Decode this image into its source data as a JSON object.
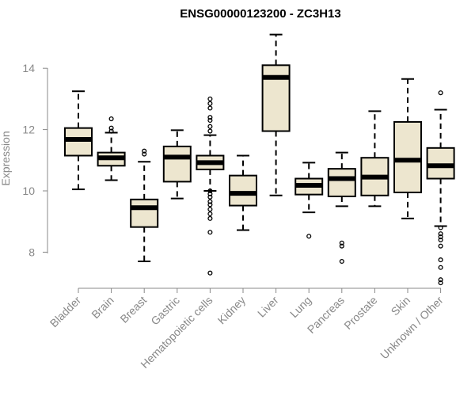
{
  "chart_data": {
    "type": "boxplot",
    "title": "ENSG00000123200 - ZC3H13",
    "xlabel": "",
    "ylabel": "Expression",
    "ylim": [
      6.5,
      15.3
    ],
    "yticks": [
      8,
      10,
      12,
      14
    ],
    "grid": false,
    "box_color": "#ede6cf",
    "categories": [
      "Bladder",
      "Brain",
      "Breast",
      "Gastric",
      "Hematopoietic cells",
      "Kidney",
      "Liver",
      "Lung",
      "Pancreas",
      "Prostate",
      "Skin",
      "Unknown / Other"
    ],
    "boxes": [
      {
        "category": "Bladder",
        "whisker_low": 10.05,
        "q1": 11.15,
        "median": 11.68,
        "q3": 12.05,
        "whisker_high": 13.25,
        "outliers": []
      },
      {
        "category": "Brain",
        "whisker_low": 10.35,
        "q1": 10.82,
        "median": 11.08,
        "q3": 11.25,
        "whisker_high": 11.9,
        "outliers": [
          11.95,
          12.05,
          12.35
        ]
      },
      {
        "category": "Breast",
        "whisker_low": 7.7,
        "q1": 8.82,
        "median": 9.45,
        "q3": 9.72,
        "whisker_high": 10.95,
        "outliers": [
          11.2,
          11.3
        ]
      },
      {
        "category": "Gastric",
        "whisker_low": 9.75,
        "q1": 10.3,
        "median": 11.1,
        "q3": 11.45,
        "whisker_high": 11.98,
        "outliers": []
      },
      {
        "category": "Hematopoietic cells",
        "whisker_low": 10.0,
        "q1": 10.7,
        "median": 10.92,
        "q3": 11.15,
        "whisker_high": 11.82,
        "outliers": [
          7.32,
          8.65,
          9.1,
          9.25,
          9.4,
          9.55,
          9.65,
          9.8,
          9.9,
          10.0,
          11.95,
          12.1,
          12.3,
          12.4,
          12.7,
          12.85,
          13.0
        ]
      },
      {
        "category": "Kidney",
        "whisker_low": 8.72,
        "q1": 9.52,
        "median": 9.92,
        "q3": 10.5,
        "whisker_high": 11.15,
        "outliers": []
      },
      {
        "category": "Liver",
        "whisker_low": 9.85,
        "q1": 11.95,
        "median": 13.7,
        "q3": 14.1,
        "whisker_high": 15.1,
        "outliers": []
      },
      {
        "category": "Lung",
        "whisker_low": 9.3,
        "q1": 9.88,
        "median": 10.18,
        "q3": 10.4,
        "whisker_high": 10.92,
        "outliers": [
          8.52
        ]
      },
      {
        "category": "Pancreas",
        "whisker_low": 9.5,
        "q1": 9.82,
        "median": 10.4,
        "q3": 10.72,
        "whisker_high": 11.25,
        "outliers": [
          7.7,
          8.2,
          8.3
        ]
      },
      {
        "category": "Prostate",
        "whisker_low": 9.5,
        "q1": 9.85,
        "median": 10.45,
        "q3": 11.08,
        "whisker_high": 12.6,
        "outliers": []
      },
      {
        "category": "Skin",
        "whisker_low": 9.1,
        "q1": 9.95,
        "median": 11.0,
        "q3": 12.25,
        "whisker_high": 13.65,
        "outliers": []
      },
      {
        "category": "Unknown / Other",
        "whisker_low": 8.85,
        "q1": 10.4,
        "median": 10.82,
        "q3": 11.4,
        "whisker_high": 12.65,
        "outliers": [
          7.0,
          7.1,
          7.5,
          7.75,
          8.2,
          8.4,
          8.5,
          8.6,
          8.8,
          13.2
        ]
      }
    ]
  }
}
